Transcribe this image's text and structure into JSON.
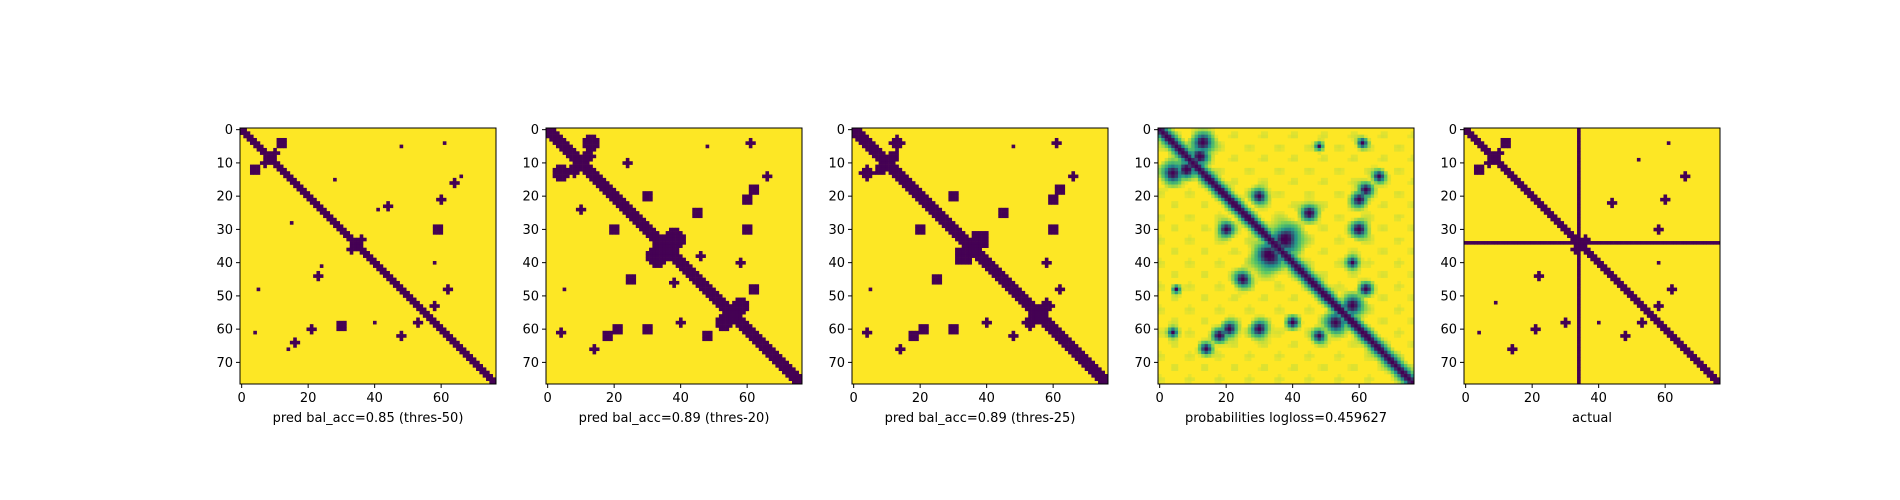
{
  "colors": {
    "contact": "#440154",
    "background": "#fde725",
    "prob_mid": "#21918c",
    "prob_light": "#5ec962",
    "axes": "#000000"
  },
  "chart_data": [
    {
      "type": "heatmap",
      "title": "",
      "xlabel": "pred bal_acc=0.85 (thres-50)",
      "size": 77,
      "xlim": [
        0,
        76
      ],
      "ylim": [
        76,
        0
      ],
      "xticks": [
        0,
        20,
        40,
        60
      ],
      "yticks": [
        0,
        10,
        20,
        30,
        40,
        50,
        60,
        70
      ],
      "style": "binary",
      "diag_width": 1.6,
      "blobs": [
        [
          4,
          12,
          1.4
        ],
        [
          12,
          4,
          1.4
        ],
        [
          7,
          10,
          1.2
        ],
        [
          10,
          7,
          1.2
        ],
        [
          15,
          28,
          0.8
        ],
        [
          28,
          15,
          0.8
        ],
        [
          23,
          44,
          1.0
        ],
        [
          44,
          23,
          1.0
        ],
        [
          24,
          41,
          0.8
        ],
        [
          41,
          24,
          0.8
        ],
        [
          30,
          59,
          1.3
        ],
        [
          59,
          30,
          1.3
        ],
        [
          40,
          58,
          0.8
        ],
        [
          58,
          40,
          0.8
        ],
        [
          60,
          21,
          1.0
        ],
        [
          21,
          60,
          1.0
        ],
        [
          14,
          66,
          0.8
        ],
        [
          66,
          14,
          0.8
        ],
        [
          48,
          62,
          1.0
        ],
        [
          62,
          48,
          1.0
        ],
        [
          33,
          36,
          1.0
        ],
        [
          36,
          33,
          1.0
        ],
        [
          48,
          5,
          0.5
        ],
        [
          5,
          48,
          0.5
        ],
        [
          4,
          61,
          0.6
        ],
        [
          61,
          4,
          0.6
        ],
        [
          16,
          64,
          1.1
        ],
        [
          64,
          16,
          1.1
        ],
        [
          53,
          58,
          1.2
        ],
        [
          58,
          53,
          1.2
        ]
      ]
    },
    {
      "type": "heatmap",
      "title": "",
      "xlabel": "pred bal_acc=0.89 (thres-20)",
      "size": 77,
      "xlim": [
        0,
        76
      ],
      "ylim": [
        76,
        0
      ],
      "xticks": [
        0,
        20,
        40,
        60
      ],
      "yticks": [
        0,
        10,
        20,
        30,
        40,
        50,
        60,
        70
      ],
      "style": "binary",
      "diag_width": 2.0,
      "blobs": [
        [
          4,
          13,
          2.0
        ],
        [
          13,
          4,
          2.0
        ],
        [
          8,
          12,
          1.8
        ],
        [
          12,
          8,
          1.8
        ],
        [
          20,
          30,
          1.5
        ],
        [
          30,
          20,
          1.5
        ],
        [
          25,
          45,
          1.6
        ],
        [
          45,
          25,
          1.6
        ],
        [
          30,
          60,
          1.6
        ],
        [
          60,
          30,
          1.6
        ],
        [
          40,
          58,
          1.2
        ],
        [
          58,
          40,
          1.2
        ],
        [
          60,
          21,
          1.5
        ],
        [
          21,
          60,
          1.5
        ],
        [
          14,
          66,
          1.2
        ],
        [
          66,
          14,
          1.2
        ],
        [
          48,
          62,
          1.3
        ],
        [
          62,
          48,
          1.3
        ],
        [
          33,
          38,
          2.8
        ],
        [
          38,
          33,
          2.8
        ],
        [
          48,
          5,
          0.8
        ],
        [
          5,
          48,
          0.8
        ],
        [
          4,
          61,
          1.0
        ],
        [
          61,
          4,
          1.0
        ],
        [
          18,
          62,
          1.4
        ],
        [
          62,
          18,
          1.4
        ],
        [
          53,
          58,
          2.0
        ],
        [
          58,
          53,
          2.0
        ],
        [
          10,
          24,
          1.0
        ],
        [
          24,
          10,
          1.0
        ],
        [
          38,
          46,
          1.0
        ],
        [
          46,
          38,
          1.0
        ]
      ]
    },
    {
      "type": "heatmap",
      "title": "",
      "xlabel": "pred bal_acc=0.89 (thres-25)",
      "size": 77,
      "xlim": [
        0,
        76
      ],
      "ylim": [
        76,
        0
      ],
      "xticks": [
        0,
        20,
        40,
        60
      ],
      "yticks": [
        0,
        10,
        20,
        30,
        40,
        50,
        60,
        70
      ],
      "style": "binary",
      "diag_width": 1.9,
      "blobs": [
        [
          4,
          13,
          1.8
        ],
        [
          13,
          4,
          1.8
        ],
        [
          8,
          12,
          1.6
        ],
        [
          12,
          8,
          1.6
        ],
        [
          20,
          30,
          1.3
        ],
        [
          30,
          20,
          1.3
        ],
        [
          25,
          45,
          1.5
        ],
        [
          45,
          25,
          1.5
        ],
        [
          30,
          60,
          1.5
        ],
        [
          60,
          30,
          1.5
        ],
        [
          40,
          58,
          1.1
        ],
        [
          58,
          40,
          1.1
        ],
        [
          60,
          21,
          1.4
        ],
        [
          21,
          60,
          1.4
        ],
        [
          14,
          66,
          1.1
        ],
        [
          66,
          14,
          1.1
        ],
        [
          48,
          62,
          1.2
        ],
        [
          62,
          48,
          1.2
        ],
        [
          33,
          38,
          2.5
        ],
        [
          38,
          33,
          2.5
        ],
        [
          48,
          5,
          0.7
        ],
        [
          5,
          48,
          0.7
        ],
        [
          4,
          61,
          0.9
        ],
        [
          61,
          4,
          0.9
        ],
        [
          18,
          62,
          1.3
        ],
        [
          62,
          18,
          1.3
        ],
        [
          53,
          58,
          1.8
        ],
        [
          58,
          53,
          1.8
        ]
      ]
    },
    {
      "type": "heatmap",
      "title": "",
      "xlabel": "probabilities logloss=0.459627",
      "size": 77,
      "xlim": [
        0,
        76
      ],
      "ylim": [
        76,
        0
      ],
      "xticks": [
        0,
        20,
        40,
        60
      ],
      "yticks": [
        0,
        10,
        20,
        30,
        40,
        50,
        60,
        70
      ],
      "style": "probability",
      "diag_width": 1.8,
      "blobs": [
        [
          4,
          13,
          2.0
        ],
        [
          13,
          4,
          2.0
        ],
        [
          8,
          12,
          1.8
        ],
        [
          12,
          8,
          1.8
        ],
        [
          20,
          30,
          1.5
        ],
        [
          30,
          20,
          1.5
        ],
        [
          25,
          45,
          1.6
        ],
        [
          45,
          25,
          1.6
        ],
        [
          30,
          60,
          1.6
        ],
        [
          60,
          30,
          1.6
        ],
        [
          40,
          58,
          1.2
        ],
        [
          58,
          40,
          1.2
        ],
        [
          60,
          21,
          1.5
        ],
        [
          21,
          60,
          1.5
        ],
        [
          14,
          66,
          1.2
        ],
        [
          66,
          14,
          1.2
        ],
        [
          48,
          62,
          1.3
        ],
        [
          62,
          48,
          1.3
        ],
        [
          33,
          38,
          2.8
        ],
        [
          38,
          33,
          2.8
        ],
        [
          48,
          5,
          0.8
        ],
        [
          5,
          48,
          0.8
        ],
        [
          4,
          61,
          1.0
        ],
        [
          61,
          4,
          1.0
        ],
        [
          18,
          62,
          1.4
        ],
        [
          62,
          18,
          1.4
        ],
        [
          53,
          58,
          2.0
        ],
        [
          58,
          53,
          2.0
        ]
      ]
    },
    {
      "type": "heatmap",
      "title": "",
      "xlabel": "actual",
      "size": 77,
      "xlim": [
        0,
        76
      ],
      "ylim": [
        76,
        0
      ],
      "xticks": [
        0,
        20,
        40,
        60
      ],
      "yticks": [
        0,
        10,
        20,
        30,
        40,
        50,
        60,
        70
      ],
      "style": "binary",
      "diag_width": 1.5,
      "cross_at": 34,
      "blobs": [
        [
          4,
          12,
          1.3
        ],
        [
          12,
          4,
          1.3
        ],
        [
          7,
          10,
          1.1
        ],
        [
          10,
          7,
          1.1
        ],
        [
          22,
          44,
          0.9
        ],
        [
          44,
          22,
          0.9
        ],
        [
          30,
          58,
          1.2
        ],
        [
          58,
          30,
          1.2
        ],
        [
          40,
          58,
          0.8
        ],
        [
          58,
          40,
          0.8
        ],
        [
          60,
          21,
          1.0
        ],
        [
          21,
          60,
          1.0
        ],
        [
          14,
          66,
          0.9
        ],
        [
          66,
          14,
          0.9
        ],
        [
          48,
          62,
          0.9
        ],
        [
          62,
          48,
          0.9
        ],
        [
          33,
          36,
          0.9
        ],
        [
          36,
          33,
          0.9
        ],
        [
          4,
          61,
          0.6
        ],
        [
          61,
          4,
          0.6
        ],
        [
          53,
          58,
          1.2
        ],
        [
          58,
          53,
          1.2
        ],
        [
          9,
          52,
          0.8
        ],
        [
          52,
          9,
          0.8
        ]
      ]
    }
  ]
}
